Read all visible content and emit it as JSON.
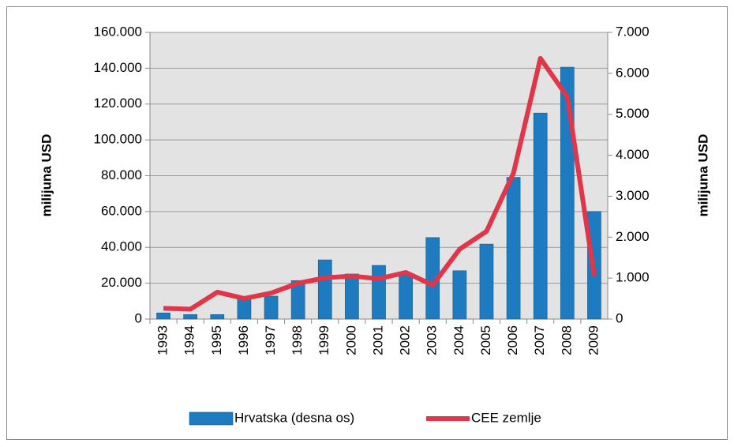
{
  "chart_data": {
    "type": "bar_line",
    "categories": [
      "1993",
      "1994",
      "1995",
      "1996",
      "1997",
      "1998",
      "1999",
      "2000",
      "2001",
      "2002",
      "2003",
      "2004",
      "2005",
      "2006",
      "2007",
      "2008",
      "2009"
    ],
    "series": [
      {
        "name": "Hrvatska (desna os)",
        "color": "#1f7bbf",
        "type": "bar",
        "axis": "y2",
        "values": [
          150,
          110,
          110,
          480,
          560,
          940,
          1445,
          1100,
          1310,
          1100,
          1990,
          1180,
          1830,
          3460,
          5030,
          6150,
          2625
        ]
      },
      {
        "name": "CEE zemlje",
        "color": "#e0364a",
        "type": "line",
        "axis": "y",
        "values": [
          6000,
          5500,
          15000,
          11500,
          14500,
          20000,
          23000,
          24000,
          22500,
          26000,
          19000,
          39000,
          49000,
          81500,
          145500,
          124000,
          24000
        ]
      }
    ],
    "ylabel": "milijuna USD",
    "y2label": "milijuna USD",
    "ylim": [
      0,
      160000
    ],
    "yticks": [
      0,
      {
        "value": 20000,
        "label": "20.000"
      },
      {
        "value": 40000,
        "label": "40.000"
      },
      {
        "value": 60000,
        "label": "60.000"
      },
      {
        "value": 80000,
        "label": "80.000"
      },
      {
        "value": 100000,
        "label": "100.000"
      },
      {
        "value": 120000,
        "label": "120.000"
      },
      {
        "value": 140000,
        "label": "140.000"
      },
      {
        "value": 160000,
        "label": "160.000"
      }
    ],
    "y2lim": [
      0,
      7000
    ],
    "y2ticks": [
      0,
      {
        "value": 1000,
        "label": "1.000"
      },
      {
        "value": 2000,
        "label": "2.000"
      },
      {
        "value": 3000,
        "label": "3.000"
      },
      {
        "value": 4000,
        "label": "4.000"
      },
      {
        "value": 5000,
        "label": "5.000"
      },
      {
        "value": 6000,
        "label": "6.000"
      },
      {
        "value": 7000,
        "label": "7.000"
      }
    ],
    "grid": true,
    "legend": "bottom"
  }
}
